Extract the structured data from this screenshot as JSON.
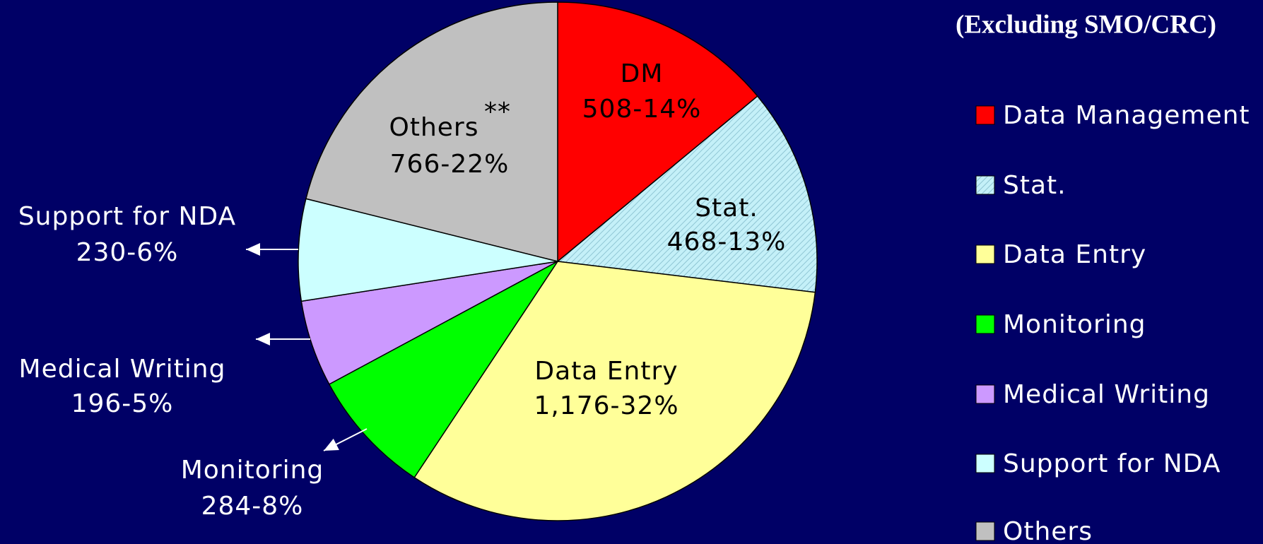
{
  "chart_data": {
    "type": "pie",
    "subtitle": "(Excluding SMO/CRC)",
    "categories": [
      "Data Management",
      "Stat.",
      "Data Entry",
      "Monitoring",
      "Medical Writing",
      "Support for NDA",
      "Others"
    ],
    "slice_labels": [
      "DM",
      "Stat.",
      "Data Entry",
      "Monitoring",
      "Medical Writing",
      "Support for NDA",
      "Others"
    ],
    "values": [
      508,
      468,
      1176,
      284,
      196,
      230,
      766
    ],
    "value_labels": [
      "508-14%",
      "468-13%",
      "1,176-32%",
      "284-8%",
      "196-5%",
      "230-6%",
      "766-22%"
    ],
    "annotation": "**",
    "colors": [
      "#ff0000",
      "#c4f0f8",
      "#ffff99",
      "#00ff00",
      "#cc99ff",
      "#ccffff",
      "#c0c0c0"
    ],
    "patterns": [
      "solid",
      "hatch",
      "solid",
      "solid",
      "solid",
      "solid",
      "solid"
    ],
    "legend": "right"
  }
}
